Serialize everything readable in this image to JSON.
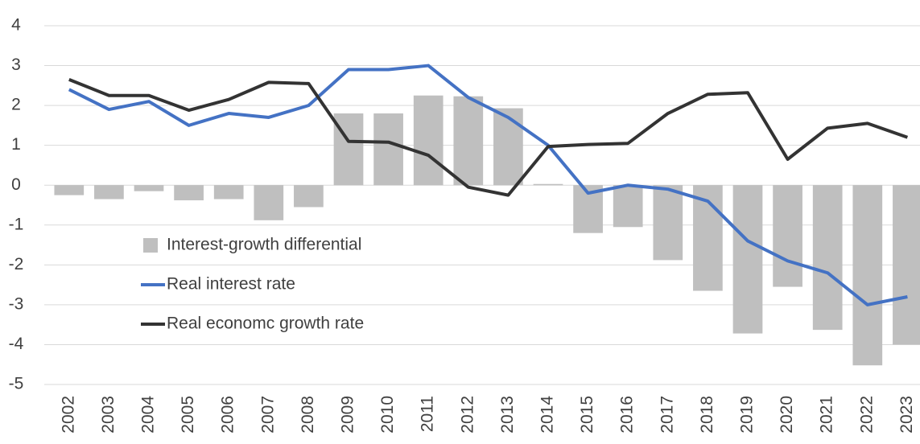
{
  "chart_data": {
    "type": "bar_line",
    "categories": [
      "2002",
      "2003",
      "2004",
      "2005",
      "2006",
      "2007",
      "2008",
      "2009",
      "2010",
      "2011",
      "2012",
      "2013",
      "2014",
      "2015",
      "2016",
      "2017",
      "2018",
      "2019",
      "2020",
      "2021",
      "2022",
      "2023"
    ],
    "series": [
      {
        "name": "Interest-growth differential",
        "type": "bar",
        "color": "#bfbfbf",
        "values": [
          -0.25,
          -0.35,
          -0.15,
          -0.38,
          -0.35,
          -0.88,
          -0.55,
          1.8,
          1.8,
          2.25,
          2.23,
          1.93,
          0.03,
          -1.2,
          -1.05,
          -1.88,
          -2.65,
          -3.72,
          -2.55,
          -3.63,
          -4.52,
          -4.0
        ]
      },
      {
        "name": "Real interest rate",
        "type": "line",
        "color": "#4472c4",
        "values": [
          2.4,
          1.9,
          2.1,
          1.5,
          1.8,
          1.7,
          2.0,
          2.9,
          2.9,
          3.0,
          2.2,
          1.7,
          1.0,
          -0.2,
          0.0,
          -0.1,
          -0.4,
          -1.4,
          -1.9,
          -2.2,
          -3.0,
          -2.8
        ]
      },
      {
        "name": "Real economc growth rate",
        "type": "line",
        "color": "#333333",
        "values": [
          2.65,
          2.25,
          2.25,
          1.88,
          2.15,
          2.58,
          2.55,
          1.1,
          1.08,
          0.75,
          -0.05,
          -0.25,
          0.97,
          1.02,
          1.05,
          1.8,
          2.28,
          2.32,
          0.65,
          1.43,
          1.55,
          1.2
        ]
      }
    ],
    "ylim": [
      -5,
      4
    ],
    "yticks": [
      4,
      3,
      2,
      1,
      0,
      -1,
      -2,
      -3,
      -4,
      -5
    ],
    "grid": true
  }
}
